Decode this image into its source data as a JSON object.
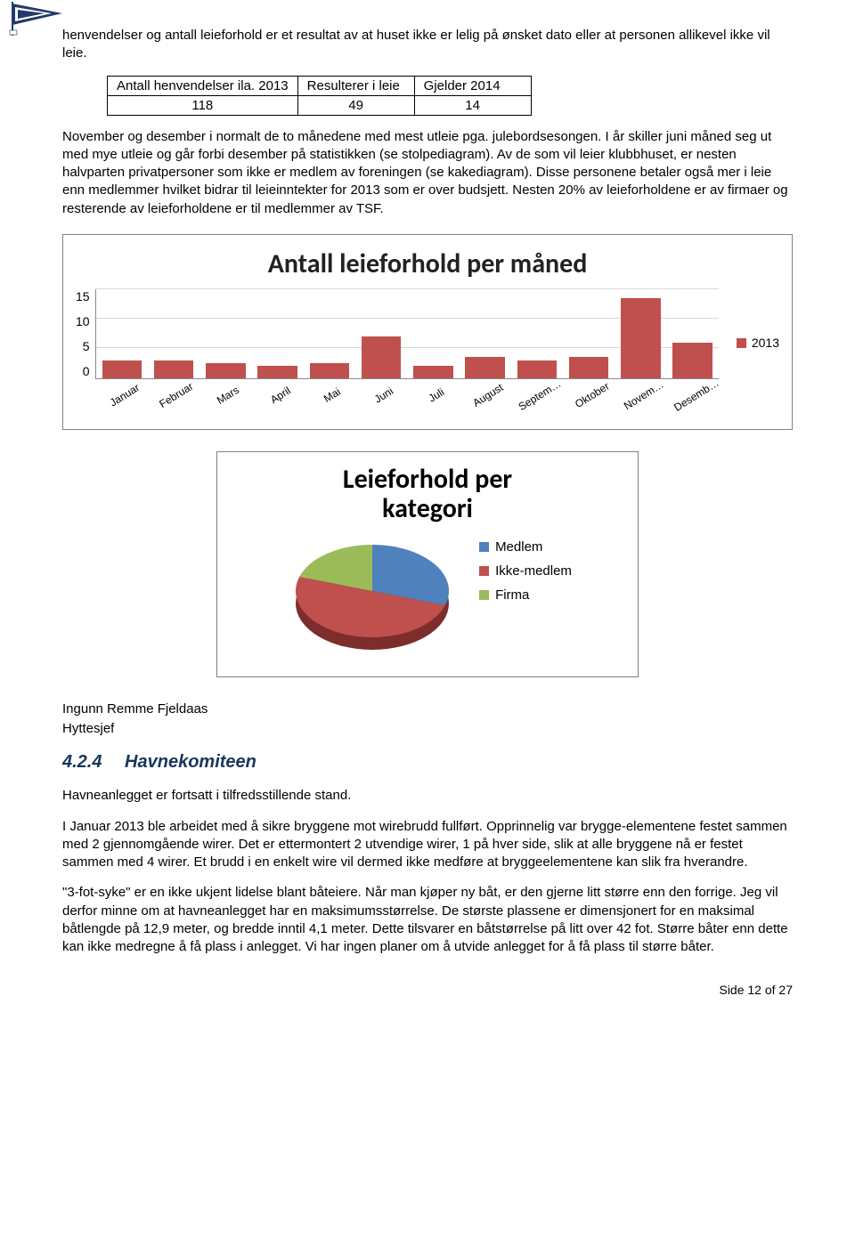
{
  "intro_para": "henvendelser og antall leieforhold er et resultat av at huset ikke er lelig på ønsket dato eller at personen allikevel ikke vil leie.",
  "table": {
    "headers": [
      "Antall henvendelser ila. 2013",
      "Resulterer i leie",
      "Gjelder 2014"
    ],
    "values": [
      "118",
      "49",
      "14"
    ]
  },
  "body_para": "November og desember i normalt de to månedene med mest utleie pga. julebordsesongen. I år skiller juni måned seg ut med mye utleie og går forbi desember på statistikken (se stolpediagram). Av de som vil leier klubbhuset, er nesten halvparten privatpersoner som ikke er medlem av foreningen (se kakediagram). Disse personene betaler også mer i leie enn medlemmer hvilket bidrar til leieinntekter for 2013 som er over budsjett. Nesten 20% av leieforholdene er av firmaer og resterende av leieforholdene er til medlemmer av TSF.",
  "bar_chart": {
    "title": "Antall leieforhold per måned",
    "categories": [
      "Januar",
      "Februar",
      "Mars",
      "April",
      "Mai",
      "Juni",
      "Juli",
      "August",
      "Septem…",
      "Oktober",
      "Novem…",
      "Desemb…"
    ],
    "values": [
      3,
      3,
      2.5,
      2,
      2.5,
      7,
      2,
      3.5,
      3,
      3.5,
      13.5,
      6
    ],
    "bar_color": "#c0504d",
    "legend_label": "2013",
    "yticks": [
      "15",
      "10",
      "5",
      "0"
    ],
    "ymax": 15,
    "grid_color": "#d9d9d9",
    "title_fontsize": 30
  },
  "pie_chart": {
    "title_line1": "Leieforhold per",
    "title_line2": "kategori",
    "slices": [
      {
        "label": "Medlem",
        "color": "#4f81bd",
        "pct": 30
      },
      {
        "label": "Ikke-medlem",
        "color": "#c0504d",
        "pct": 50
      },
      {
        "label": "Firma",
        "color": "#9bbb59",
        "pct": 20
      }
    ],
    "tilt_bottom_color": "#7d2d2b"
  },
  "signoff_name": "Ingunn Remme Fjeldaas",
  "signoff_title": "Hyttesjef",
  "section": {
    "number": "4.2.4",
    "title": "Havnekomiteen"
  },
  "sec_p1": "Havneanlegget er fortsatt i tilfredsstillende stand.",
  "sec_p2": "I Januar 2013 ble arbeidet med å sikre bryggene mot wirebrudd fullført. Opprinnelig var brygge-elementene festet sammen med 2 gjennomgående wirer.  Det er ettermontert 2 utvendige wirer, 1 på hver side, slik at alle bryggene nå er festet sammen med 4 wirer.  Et brudd i en enkelt wire vil dermed ikke medføre at bryggeelementene kan slik fra hverandre.",
  "sec_p3": "\"3-fot-syke\" er en ikke ukjent lidelse blant båteiere.  Når man kjøper ny båt, er den gjerne litt større enn den forrige.  Jeg vil derfor minne om at havneanlegget har en maksimumsstørrelse.  De største plassene er dimensjonert for en maksimal båtlengde på 12,9 meter, og bredde inntil 4,1 meter. Dette tilsvarer en båtstørrelse på litt over 42 fot.  Større båter enn dette kan ikke medregne å få plass i anlegget.   Vi har ingen planer om å utvide anlegget for å få plass til større båter.",
  "footer": "Side 12 of 27",
  "logo": {
    "outer": "#223a6a",
    "inner": "#ffffff",
    "pole": "#223a6a"
  }
}
